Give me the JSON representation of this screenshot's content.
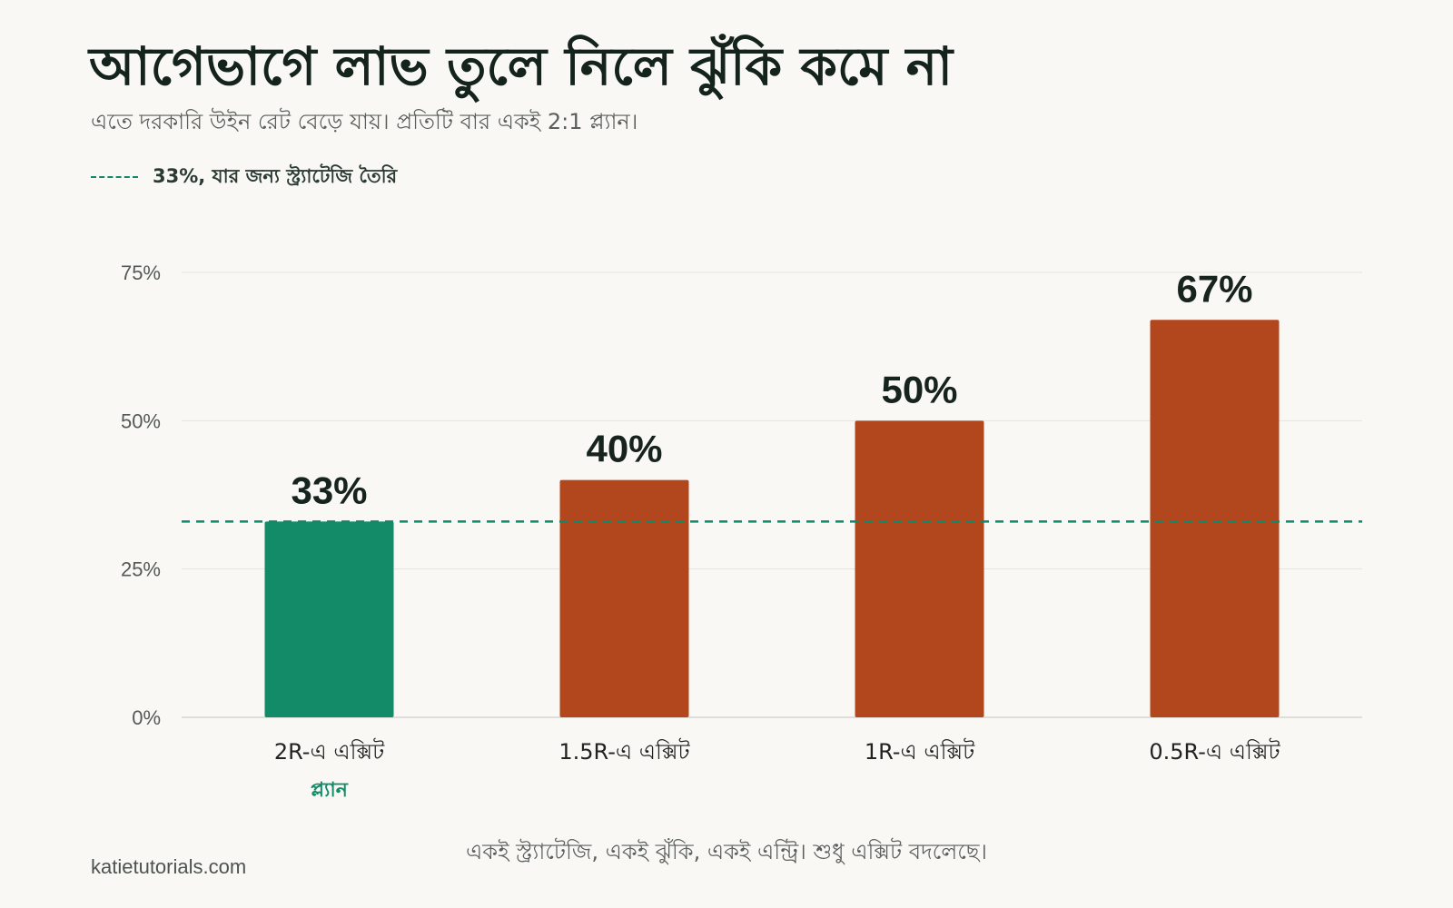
{
  "title": "আগেভাগে লাভ তুলে নিলে ঝুঁকি কমে না",
  "subtitle": "এতে দরকারি উইন রেট বেড়ে যায়। প্রতিটি বার একই 2:1 প্ল্যান।",
  "legend": {
    "label": "33%, যার জন্য স্ট্র্যাটেজি তৈরি"
  },
  "footer_note": "একই স্ট্র্যাটেজি, একই ঝুঁকি, একই এন্ট্রি। শুধু এক্সিট বদলেছে।",
  "source": "katietutorials.com",
  "colors": {
    "plan": "#138a68",
    "other": "#b2471e",
    "reference_line": "#12876a",
    "grid": "#e3e3e0",
    "tick_text": "#555a57",
    "value_text": "#17231d",
    "category_text": "#222"
  },
  "chart_data": {
    "type": "bar",
    "categories": [
      "2R-এ এক্সিট",
      "1.5R-এ এক্সিট",
      "1R-এ এক্সিট",
      "0.5R-এ এক্সিট"
    ],
    "values": [
      33,
      40,
      50,
      67
    ],
    "value_labels": [
      "33%",
      "40%",
      "50%",
      "67%"
    ],
    "category_sublabels": [
      "প্ল্যান",
      "",
      "",
      ""
    ],
    "highlight_index": 0,
    "ylim": [
      0,
      75
    ],
    "yticks": [
      0,
      25,
      50,
      75
    ],
    "ytick_labels": [
      "0%",
      "25%",
      "50%",
      "75%"
    ],
    "reference_line": {
      "value": 33,
      "style": "dashed",
      "label": "33%, যার জন্য স্ট্র্যাটেজি তৈরি"
    },
    "grid": true,
    "legend_position": "top-left"
  }
}
